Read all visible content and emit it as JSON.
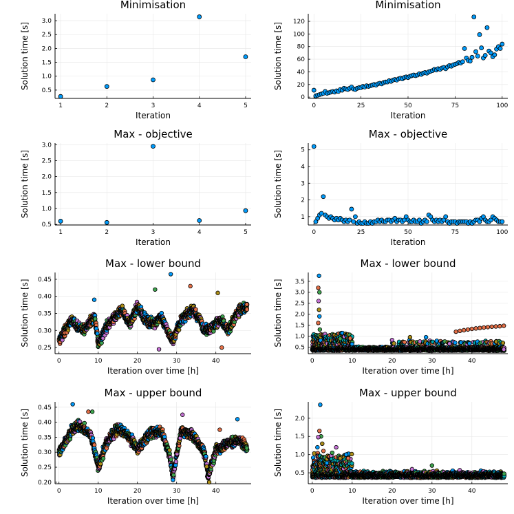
{
  "palette": [
    "#009AFA",
    "#E36F47",
    "#3EA44E",
    "#C371D2",
    "#AC8E18",
    "#00A9AD",
    "#ED5E93",
    "#C68225",
    "#00A98D",
    "#8E971E"
  ],
  "chart_data": [
    {
      "type": "scatter",
      "title": "Minimisation",
      "xlabel": "Iteration",
      "ylabel": "Solution time [s]",
      "xlim": [
        0.88,
        5.12
      ],
      "ylim": [
        0.2,
        3.25
      ],
      "xticks": [
        1,
        2,
        3,
        4,
        5
      ],
      "yticks": [
        0.5,
        1.0,
        1.5,
        2.0,
        2.5,
        3.0
      ],
      "yticklabels": [
        "0.5",
        "1.0",
        "1.5",
        "2.0",
        "2.5",
        "3.0"
      ],
      "grid": true,
      "legend": "none",
      "color": "#009AFA",
      "x": [
        1,
        2,
        3,
        4,
        5
      ],
      "y": [
        0.27,
        0.63,
        0.87,
        3.14,
        1.7
      ]
    },
    {
      "type": "scatter",
      "title": "Minimisation",
      "xlabel": "Iteration",
      "ylabel": "Solution time [s]",
      "xlim": [
        -3,
        103
      ],
      "ylim": [
        -2,
        132
      ],
      "xticks": [
        0,
        25,
        50,
        75,
        100
      ],
      "yticks": [
        0,
        20,
        40,
        60,
        80,
        100,
        120
      ],
      "yticklabels": [
        "0",
        "20",
        "40",
        "60",
        "80",
        "100",
        "120"
      ],
      "grid": true,
      "legend": "none",
      "color": "#009AFA",
      "y": [
        11,
        2,
        3,
        4,
        5,
        6,
        9,
        6,
        7,
        8,
        9,
        8,
        10,
        9,
        12,
        11,
        14,
        13,
        12,
        14,
        16,
        13,
        12,
        14,
        15,
        15,
        17,
        16,
        18,
        17,
        18,
        19,
        20,
        19,
        21,
        22,
        21,
        23,
        24,
        24,
        26,
        25,
        27,
        28,
        27,
        29,
        30,
        29,
        31,
        32,
        31,
        33,
        34,
        35,
        34,
        35,
        37,
        36,
        38,
        39,
        38,
        40,
        41,
        42,
        44,
        43,
        45,
        44,
        46,
        47,
        45,
        48,
        50,
        49,
        51,
        52,
        53,
        55,
        54,
        56,
        77,
        62,
        58,
        57,
        63,
        127,
        72,
        65,
        99,
        78,
        62,
        66,
        110,
        73,
        70,
        64,
        67,
        76,
        80,
        77,
        84
      ]
    },
    {
      "type": "scatter",
      "title": "Max - objective",
      "xlabel": "Iteration",
      "ylabel": "Solution time [s]",
      "xlim": [
        0.88,
        5.12
      ],
      "ylim": [
        0.48,
        3.05
      ],
      "xticks": [
        1,
        2,
        3,
        4,
        5
      ],
      "yticks": [
        0.5,
        1.0,
        1.5,
        2.0,
        2.5,
        3.0
      ],
      "yticklabels": [
        "0.5",
        "1.0",
        "1.5",
        "2.0",
        "2.5",
        "3.0"
      ],
      "grid": true,
      "legend": "none",
      "color": "#009AFA",
      "x": [
        1,
        2,
        3,
        4,
        5
      ],
      "y": [
        0.6,
        0.56,
        2.95,
        0.62,
        0.93
      ]
    },
    {
      "type": "scatter",
      "title": "Max - objective",
      "xlabel": "Iteration",
      "ylabel": "Solution time [s]",
      "xlim": [
        -3,
        103
      ],
      "ylim": [
        0.5,
        5.4
      ],
      "xticks": [
        0,
        25,
        50,
        75,
        100
      ],
      "yticks": [
        1,
        2,
        3,
        4,
        5
      ],
      "yticklabels": [
        "1",
        "2",
        "3",
        "4",
        "5"
      ],
      "grid": true,
      "legend": "none",
      "color": "#009AFA",
      "y": [
        5.2,
        0.7,
        0.9,
        1.1,
        1.2,
        2.2,
        1.1,
        1.0,
        0.9,
        1.0,
        0.9,
        0.8,
        0.9,
        0.8,
        0.9,
        0.8,
        0.7,
        0.8,
        0.7,
        0.8,
        1.45,
        0.7,
        1.0,
        0.6,
        0.7,
        0.6,
        0.6,
        0.7,
        0.6,
        0.6,
        0.7,
        0.6,
        0.7,
        0.7,
        0.8,
        0.7,
        0.8,
        0.7,
        0.7,
        0.8,
        0.8,
        0.7,
        0.8,
        0.9,
        0.7,
        0.8,
        0.8,
        0.7,
        0.8,
        1.0,
        0.8,
        0.7,
        0.7,
        0.8,
        0.7,
        0.7,
        0.8,
        0.6,
        0.7,
        0.8,
        0.7,
        1.1,
        1.0,
        0.8,
        0.7,
        0.8,
        0.7,
        0.8,
        0.7,
        0.8,
        1.0,
        0.7,
        0.6,
        0.7,
        0.7,
        0.7,
        0.6,
        0.7,
        0.7,
        0.7,
        0.7,
        0.7,
        0.6,
        0.7,
        0.6,
        0.7,
        0.8,
        0.8,
        0.7,
        0.9,
        1.0,
        0.8,
        0.7,
        0.7,
        0.8,
        1.0,
        0.9,
        0.8,
        0.7,
        0.7,
        0.7
      ]
    },
    {
      "type": "scatter",
      "title": "Max - lower bound",
      "xlabel": "Iteration over time [h]",
      "ylabel": "Solution time [s]",
      "xlim": [
        -1,
        49
      ],
      "ylim": [
        0.232,
        0.47
      ],
      "xticks": [
        0,
        10,
        20,
        30,
        40
      ],
      "yticks": [
        0.25,
        0.3,
        0.35,
        0.4,
        0.45
      ],
      "yticklabels": [
        "0.25",
        "0.30",
        "0.35",
        "0.40",
        "0.45"
      ],
      "grid": true,
      "legend": "none",
      "profile": [
        [
          0,
          0.27
        ],
        [
          3,
          0.33
        ],
        [
          6,
          0.3
        ],
        [
          9,
          0.34
        ],
        [
          10,
          0.26
        ],
        [
          12,
          0.31
        ],
        [
          16,
          0.36
        ],
        [
          18,
          0.32
        ],
        [
          20,
          0.37
        ],
        [
          22,
          0.33
        ],
        [
          24,
          0.32
        ],
        [
          26,
          0.34
        ],
        [
          28,
          0.29
        ],
        [
          29,
          0.27
        ],
        [
          31,
          0.33
        ],
        [
          34,
          0.36
        ],
        [
          36,
          0.33
        ],
        [
          37,
          0.3
        ],
        [
          39,
          0.31
        ],
        [
          41,
          0.33
        ],
        [
          43,
          0.3
        ],
        [
          46,
          0.36
        ],
        [
          48,
          0.37
        ]
      ],
      "outliers": [
        [
          28.5,
          0.465
        ],
        [
          33.5,
          0.43
        ],
        [
          24.5,
          0.42
        ],
        [
          25.5,
          0.245
        ],
        [
          40.5,
          0.41
        ],
        [
          9,
          0.39
        ],
        [
          41.5,
          0.25
        ]
      ]
    },
    {
      "type": "scatter",
      "title": "Max - lower bound",
      "xlabel": "Iteration over time [h]",
      "ylabel": "Solution time [s]",
      "xlim": [
        -1,
        49
      ],
      "ylim": [
        0.2,
        3.9
      ],
      "xticks": [
        0,
        10,
        20,
        30,
        40
      ],
      "yticks": [
        0.5,
        1.0,
        1.5,
        2.0,
        2.5,
        3.0,
        3.5
      ],
      "yticklabels": [
        "0.5",
        "1.0",
        "1.5",
        "2.0",
        "2.5",
        "3.0",
        "3.5"
      ],
      "grid": true,
      "legend": "none",
      "rising_series": [
        [
          36,
          1.2
        ],
        [
          37,
          1.24
        ],
        [
          38,
          1.27
        ],
        [
          39,
          1.3
        ],
        [
          40,
          1.33
        ],
        [
          41,
          1.35
        ],
        [
          42,
          1.37
        ],
        [
          43,
          1.39
        ],
        [
          44,
          1.41
        ],
        [
          45,
          1.43
        ],
        [
          46,
          1.44
        ],
        [
          47,
          1.45
        ],
        [
          48,
          1.47
        ]
      ],
      "outliers": [
        [
          1.7,
          3.75
        ],
        [
          1.5,
          3.2
        ],
        [
          1.8,
          3.0
        ],
        [
          1.6,
          2.6
        ],
        [
          1.7,
          2.2
        ],
        [
          1.8,
          1.9
        ],
        [
          1.5,
          1.6
        ],
        [
          1.9,
          1.3
        ],
        [
          20,
          0.82
        ],
        [
          24.5,
          0.95
        ],
        [
          28.5,
          0.95
        ],
        [
          9.5,
          0.9
        ],
        [
          7,
          0.88
        ]
      ]
    },
    {
      "type": "scatter",
      "title": "Max - upper bound",
      "xlabel": "Iteration over time [h]",
      "ylabel": "Solution time [s]",
      "xlim": [
        -1,
        49
      ],
      "ylim": [
        0.195,
        0.468
      ],
      "xticks": [
        0,
        10,
        20,
        30,
        40
      ],
      "yticks": [
        0.2,
        0.25,
        0.3,
        0.35,
        0.4,
        0.45
      ],
      "yticklabels": [
        "0.20",
        "0.25",
        "0.30",
        "0.35",
        "0.40",
        "0.45"
      ],
      "grid": true,
      "legend": "none",
      "profile": [
        [
          0,
          0.3
        ],
        [
          3,
          0.37
        ],
        [
          5,
          0.39
        ],
        [
          8,
          0.36
        ],
        [
          10,
          0.25
        ],
        [
          12,
          0.33
        ],
        [
          15,
          0.38
        ],
        [
          18,
          0.35
        ],
        [
          20,
          0.31
        ],
        [
          23,
          0.36
        ],
        [
          26,
          0.37
        ],
        [
          28,
          0.3
        ],
        [
          29,
          0.22
        ],
        [
          31,
          0.37
        ],
        [
          34,
          0.36
        ],
        [
          37,
          0.3
        ],
        [
          38,
          0.22
        ],
        [
          40,
          0.31
        ],
        [
          43,
          0.33
        ],
        [
          46,
          0.34
        ],
        [
          48,
          0.31
        ]
      ],
      "outliers": [
        [
          3.5,
          0.46
        ],
        [
          7.5,
          0.435
        ],
        [
          8.5,
          0.435
        ],
        [
          31.5,
          0.425
        ],
        [
          38.3,
          0.2
        ],
        [
          45.5,
          0.41
        ],
        [
          41,
          0.375
        ]
      ]
    },
    {
      "type": "scatter",
      "title": "Max - upper bound",
      "xlabel": "Iteration over time [h]",
      "ylabel": "Solution time [s]",
      "xlim": [
        -1,
        49
      ],
      "ylim": [
        0.2,
        2.45
      ],
      "xticks": [
        0,
        10,
        20,
        30,
        40
      ],
      "yticks": [
        0.5,
        1.0,
        1.5,
        2.0
      ],
      "yticklabels": [
        "0.5",
        "1.0",
        "1.5",
        "2.0"
      ],
      "grid": true,
      "legend": "none",
      "outliers": [
        [
          2,
          2.37
        ],
        [
          1.8,
          1.65
        ],
        [
          2.2,
          1.5
        ],
        [
          1.5,
          1.48
        ],
        [
          2.5,
          1.3
        ],
        [
          1.3,
          1.2
        ],
        [
          2.8,
          1.1
        ],
        [
          5,
          1.05
        ],
        [
          6,
          1.2
        ],
        [
          7,
          0.9
        ],
        [
          8.5,
          1.0
        ],
        [
          9,
          0.9
        ],
        [
          30,
          0.7
        ],
        [
          25,
          0.6
        ]
      ]
    }
  ]
}
